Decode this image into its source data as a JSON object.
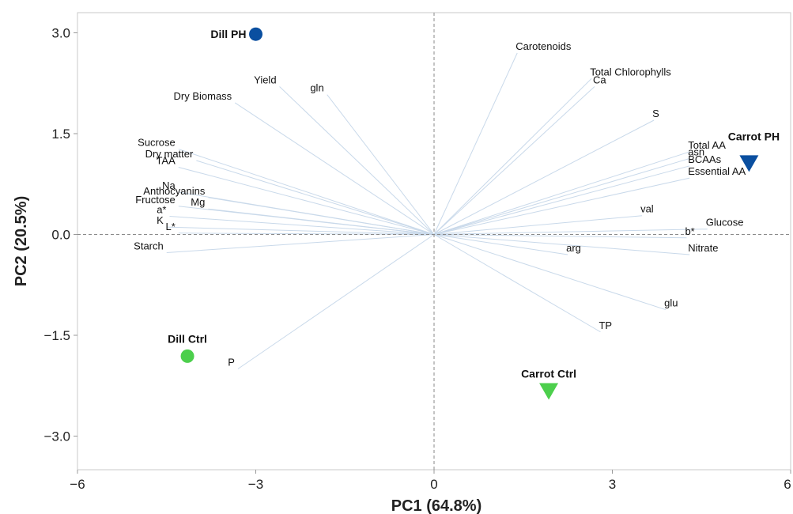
{
  "chart_data": {
    "type": "scatter",
    "subtype": "PCA biplot",
    "xlabel": "PC1 (64.8%)",
    "ylabel": "PC2 (20.5%)",
    "xlim": [
      -6,
      6
    ],
    "ylim": [
      -3.5,
      3.3
    ],
    "xticks": [
      "−6",
      "−3",
      "0",
      "3",
      "6"
    ],
    "yticks": [
      "3.0",
      "1.5",
      "0.0",
      "−1.5",
      "−3.0"
    ],
    "xtick_values": [
      -6,
      -3,
      0,
      3,
      6
    ],
    "ytick_values": [
      3.0,
      1.5,
      0.0,
      -1.5,
      -3.0
    ],
    "reference_lines": {
      "x": 0,
      "y": 0,
      "style": "dashed"
    },
    "loading_color": "#c9d9ea",
    "groups": [
      {
        "name": "Dill PH",
        "x": -3.0,
        "y": 2.98,
        "marker": "circle",
        "color": "#0a4fa0"
      },
      {
        "name": "Dill Ctrl",
        "x": -4.15,
        "y": -1.81,
        "marker": "circle",
        "color": "#4ccf4c"
      },
      {
        "name": "Carrot PH",
        "x": 5.3,
        "y": 1.06,
        "marker": "triangle-down",
        "color": "#0a4fa0"
      },
      {
        "name": "Carrot Ctrl",
        "x": 1.93,
        "y": -2.33,
        "marker": "triangle-down",
        "color": "#4ccf4c"
      }
    ],
    "variables": [
      {
        "name": "Carotenoids",
        "x": 1.4,
        "y": 2.7
      },
      {
        "name": "Total Chlorophylls",
        "x": 2.65,
        "y": 2.32
      },
      {
        "name": "Ca",
        "x": 2.7,
        "y": 2.2
      },
      {
        "name": "S",
        "x": 3.7,
        "y": 1.7
      },
      {
        "name": "Total AA",
        "x": 4.3,
        "y": 1.23
      },
      {
        "name": "asn",
        "x": 4.3,
        "y": 1.13
      },
      {
        "name": "BCAAs",
        "x": 4.3,
        "y": 1.02
      },
      {
        "name": "Essential AA",
        "x": 4.3,
        "y": 0.84
      },
      {
        "name": "val",
        "x": 3.5,
        "y": 0.28
      },
      {
        "name": "Glucose",
        "x": 4.6,
        "y": 0.08
      },
      {
        "name": "b*",
        "x": 4.25,
        "y": -0.05
      },
      {
        "name": "Nitrate",
        "x": 4.3,
        "y": -0.3
      },
      {
        "name": "arg",
        "x": 2.25,
        "y": -0.3
      },
      {
        "name": "glu",
        "x": 3.9,
        "y": -1.12
      },
      {
        "name": "TP",
        "x": 2.8,
        "y": -1.45
      },
      {
        "name": "P",
        "x": -3.3,
        "y": -2.0
      },
      {
        "name": "Starch",
        "x": -4.5,
        "y": -0.27
      },
      {
        "name": "L*",
        "x": -4.3,
        "y": 0.02
      },
      {
        "name": "K",
        "x": -4.5,
        "y": 0.11
      },
      {
        "name": "a*",
        "x": -4.45,
        "y": 0.27
      },
      {
        "name": "Fructose",
        "x": -4.3,
        "y": 0.42
      },
      {
        "name": "Mg",
        "x": -3.8,
        "y": 0.38
      },
      {
        "name": "Anthocyanins",
        "x": -3.8,
        "y": 0.55
      },
      {
        "name": "Na",
        "x": -4.3,
        "y": 0.63
      },
      {
        "name": "TAA",
        "x": -4.3,
        "y": 1.0
      },
      {
        "name": "Dry matter",
        "x": -4.0,
        "y": 1.1
      },
      {
        "name": "Sucrose",
        "x": -4.3,
        "y": 1.27
      },
      {
        "name": "Dry Biomass",
        "x": -3.35,
        "y": 1.96
      },
      {
        "name": "Yield",
        "x": -2.6,
        "y": 2.2
      },
      {
        "name": "gln",
        "x": -1.8,
        "y": 2.08
      }
    ]
  }
}
